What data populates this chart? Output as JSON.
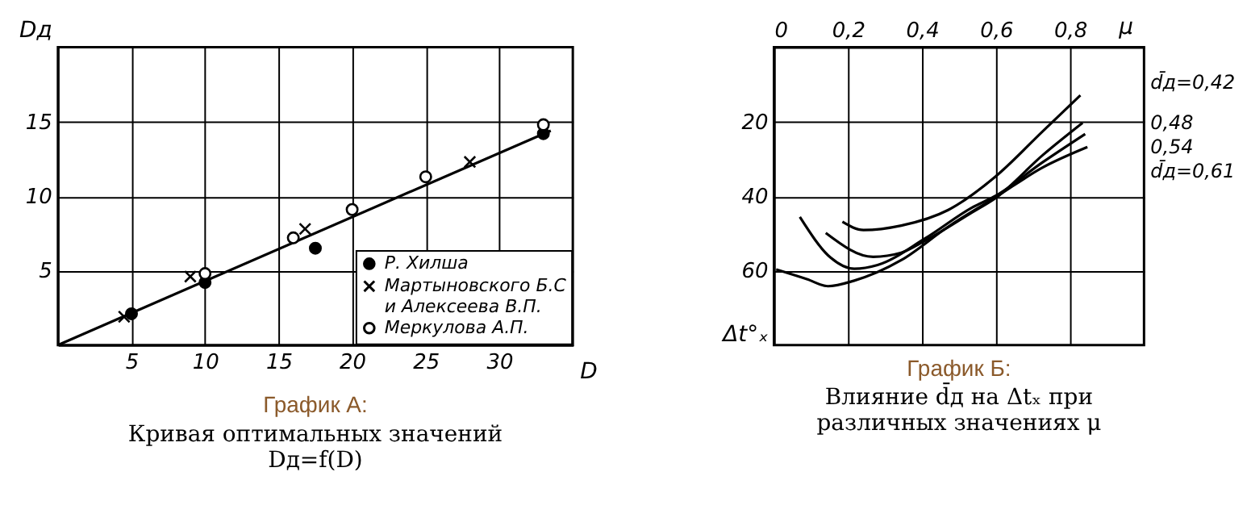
{
  "chart_data": [
    {
      "type": "scatter",
      "title": "График А:",
      "subtitle": "Кривая оптимальных значений Dд=f(D)",
      "xlabel": "D",
      "ylabel": "Dд",
      "xlim": [
        0,
        35
      ],
      "ylim": [
        0,
        20
      ],
      "xticks": [
        5,
        10,
        15,
        20,
        25,
        30
      ],
      "yticks": [
        5,
        10,
        15
      ],
      "grid": true,
      "legend": "bottom right",
      "series": [
        {
          "name": "Р. Хилша",
          "color": "#000000",
          "marker": "circle",
          "x": [
            5,
            10,
            17.5,
            33
          ],
          "values": [
            2.1,
            4.2,
            6.5,
            14.2
          ]
        },
        {
          "name": "Мартыновского Б.С и Алексеева В.П.",
          "color": "#000000",
          "marker": "cross",
          "x": [
            4.5,
            9,
            16.8,
            28
          ],
          "values": [
            1.9,
            4.6,
            7.8,
            12.3
          ]
        },
        {
          "name": "Меркулова А.П.",
          "color": "#ffffff",
          "marker": "circle",
          "x": [
            10,
            16,
            20,
            25,
            33
          ],
          "values": [
            4.8,
            7.2,
            9.1,
            11.3,
            14.8
          ]
        },
        {
          "type": "line",
          "color": "#000000",
          "x": [
            0,
            33.5
          ],
          "values": [
            0,
            14.4
          ]
        }
      ]
    },
    {
      "type": "line",
      "title": "График Б:",
      "subtitle": "Влияние d̄д на Δtₓ при различных значениях μ",
      "xlabel": "μ",
      "ylabel": "Δt°ₓ",
      "xlim": [
        0,
        1
      ],
      "ylim": [
        80,
        0
      ],
      "xticks": [
        {
          "value": 0,
          "label": "0"
        },
        {
          "value": 0.2,
          "label": "0,2"
        },
        {
          "value": 0.4,
          "label": "0,4"
        },
        {
          "value": 0.6,
          "label": "0,6"
        },
        {
          "value": 0.8,
          "label": "0,8"
        }
      ],
      "yticks": [
        20,
        40,
        60
      ],
      "grid": true,
      "series": [
        {
          "name": "d̄д=0,42",
          "color": "#000000",
          "x": [
            0.185,
            0.242,
            0.344,
            0.471,
            0.599,
            0.726,
            0.828
          ],
          "values": [
            46.9,
            49.1,
            47.9,
            43.7,
            34.7,
            22.6,
            12.9
          ]
        },
        {
          "name": "0,48",
          "color": "#000000",
          "x": [
            0.14,
            0.268,
            0.344,
            0.408,
            0.535,
            0.599,
            0.726,
            0.834
          ],
          "values": [
            49.9,
            56.3,
            55.2,
            52,
            44.4,
            40.5,
            29,
            20.3
          ]
        },
        {
          "name": "0,54",
          "color": "#000000",
          "x": [
            0.07,
            0.153,
            0.217,
            0.28,
            0.408,
            0.535,
            0.599,
            0.726,
            0.841
          ],
          "values": [
            45.6,
            56.5,
            59.5,
            58.5,
            51.4,
            43.1,
            39.9,
            30.9,
            23.3
          ]
        },
        {
          "name": "d̄д=0,61",
          "color": "#000000",
          "x": [
            0.006,
            0.089,
            0.146,
            0.217,
            0.344,
            0.471,
            0.599,
            0.726,
            0.847
          ],
          "values": [
            59.7,
            62.3,
            64.2,
            62.7,
            57.2,
            48.2,
            40.3,
            32.3,
            26.8
          ]
        }
      ]
    }
  ]
}
